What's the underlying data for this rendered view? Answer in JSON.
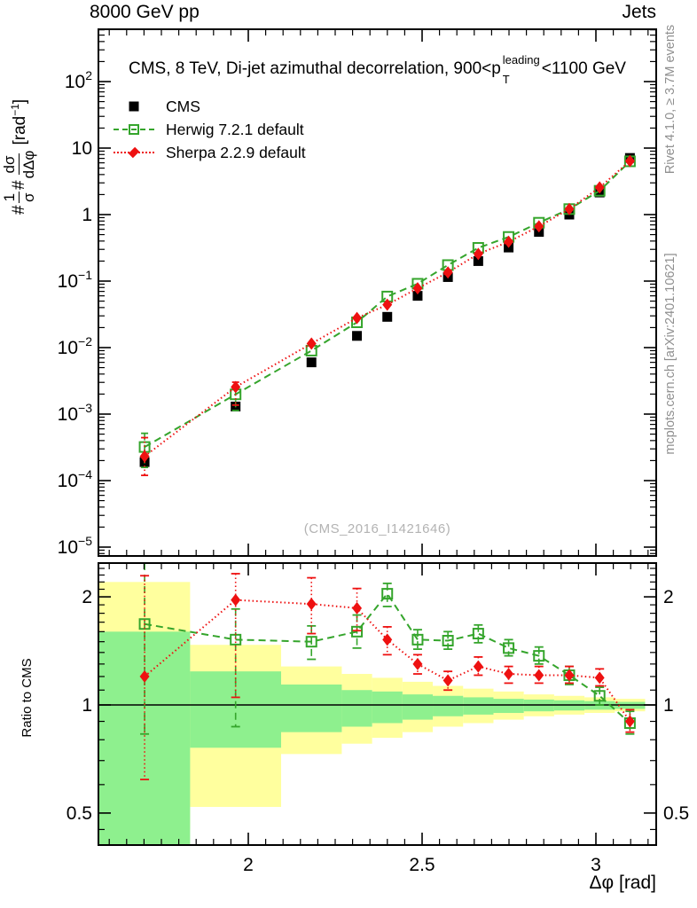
{
  "header": {
    "left": "8000 GeV pp",
    "right": "Jets"
  },
  "title": {
    "pre": "CMS, 8 TeV, Di-jet azimuthal decorrelation, 900<p",
    "sup": "leading",
    "sub": "T",
    "post": "<1100 GeV"
  },
  "legend": {
    "items": [
      {
        "label": "CMS",
        "marker": "filled-square",
        "color": "#000000",
        "line": "none"
      },
      {
        "label": "Herwig 7.2.1 default",
        "marker": "open-square",
        "color": "#35a52c",
        "line": "dashed"
      },
      {
        "label": "Sherpa 2.2.9 default",
        "marker": "filled-diamond",
        "color": "#ee1111",
        "line": "dotted"
      }
    ]
  },
  "watermark": "(CMS_2016_I1421646)",
  "side_notes": {
    "top": "Rivet 4.1.0, ≥ 3.7M events",
    "bottom": "mcplots.cern.ch [arXiv:2401.10621]"
  },
  "labels": {
    "x_axis": "Δφ [rad]",
    "ratio_axis": "Ratio to CMS",
    "y_axis": {
      "hash1": "#",
      "f1_num": "1",
      "f1_den": "σ",
      "hash2": "#",
      "f2_num": "dσ",
      "f2_den": "dΔφ",
      "unit_pre": "[rad",
      "unit_sup": "−1",
      "unit_post": "]"
    }
  },
  "colors": {
    "cms": "#000000",
    "herwig": "#35a52c",
    "sherpa": "#ee1111",
    "band_yellow": "#ffff9e",
    "band_green": "#8ef08e",
    "text_gray": "#8f8f8f",
    "watermark_gray": "#b3b3b3"
  },
  "chart_data": {
    "type": "line",
    "title": "CMS, 8 TeV, Di-jet azimuthal decorrelation, 900<pT(leading)<1100 GeV",
    "xlabel": "Δφ [rad]",
    "ylabel": "#1/σ #dσ/dΔφ [rad−1]",
    "x_range": [
      1.569,
      3.173
    ],
    "x_ticks": [
      {
        "v": 2,
        "label": "2"
      },
      {
        "v": 2.5,
        "label": "2.5"
      },
      {
        "v": 3,
        "label": "3"
      }
    ],
    "x_minor_step": 0.05,
    "bin_edges": [
      1.5708,
      1.8326,
      2.0944,
      2.2689,
      2.3562,
      2.4435,
      2.5307,
      2.618,
      2.7053,
      2.7925,
      2.8798,
      2.9671,
      3.0543,
      3.1416
    ],
    "x": [
      1.7017,
      1.9635,
      2.1817,
      2.3126,
      2.3998,
      2.4871,
      2.5743,
      2.6616,
      2.7489,
      2.8361,
      2.9234,
      3.0107,
      3.0979
    ],
    "main_panel": {
      "ylog": true,
      "y_exp_range": [
        -5.133,
        2.787
      ],
      "y_ticks": [
        {
          "v": 100,
          "base": "10",
          "sup": "2"
        },
        {
          "v": 10,
          "base": "10",
          "sup": ""
        },
        {
          "v": 1,
          "base": "1",
          "sup": ""
        },
        {
          "v": 0.1,
          "base": "10",
          "sup": "−1"
        },
        {
          "v": 0.01,
          "base": "10",
          "sup": "−2"
        },
        {
          "v": 0.001,
          "base": "10",
          "sup": "−3"
        },
        {
          "v": 0.0001,
          "base": "10",
          "sup": "−4"
        },
        {
          "v": 1e-05,
          "base": "10",
          "sup": "−5"
        }
      ],
      "series": [
        {
          "name": "CMS",
          "values": [
            0.00019,
            0.0013,
            0.006,
            0.015,
            0.029,
            0.06,
            0.115,
            0.2,
            0.32,
            0.55,
            1.0,
            2.15,
            7.1
          ]
        },
        {
          "name": "Herwig 7.2.1 default",
          "values": [
            0.00032,
            0.00198,
            0.009,
            0.024,
            0.0586,
            0.0912,
            0.174,
            0.316,
            0.461,
            0.754,
            1.21,
            2.28,
            6.32
          ]
        },
        {
          "name": "Sherpa 2.2.9 default",
          "values": [
            0.000232,
            0.00255,
            0.0115,
            0.0279,
            0.0441,
            0.078,
            0.135,
            0.256,
            0.39,
            0.666,
            1.21,
            2.56,
            6.39
          ]
        }
      ]
    },
    "ratio_panel": {
      "ylabel": "Ratio to CMS",
      "ylog": true,
      "y_range": [
        0.408,
        2.484
      ],
      "y_ticks": [
        {
          "v": 2,
          "label": "2"
        },
        {
          "v": 1,
          "label": "1"
        },
        {
          "v": 0.5,
          "label": "0.5"
        }
      ],
      "reference": {
        "name": "CMS",
        "value": 1
      },
      "bands": {
        "yellow_lo": [
          0.45,
          0.52,
          0.73,
          0.78,
          0.81,
          0.84,
          0.87,
          0.89,
          0.91,
          0.93,
          0.94,
          0.95,
          0.96
        ],
        "yellow_hi": [
          2.2,
          1.47,
          1.28,
          1.22,
          1.19,
          1.16,
          1.13,
          1.11,
          1.09,
          1.07,
          1.06,
          1.05,
          1.04
        ],
        "green_lo": [
          0.37,
          0.76,
          0.84,
          0.87,
          0.89,
          0.91,
          0.93,
          0.94,
          0.95,
          0.96,
          0.965,
          0.97,
          0.975
        ],
        "green_hi": [
          1.6,
          1.24,
          1.14,
          1.1,
          1.09,
          1.07,
          1.06,
          1.05,
          1.04,
          1.035,
          1.03,
          1.025,
          1.02
        ]
      },
      "series": [
        {
          "name": "Herwig 7.2.1 default",
          "ratio": [
            1.68,
            1.52,
            1.5,
            1.6,
            2.04,
            1.52,
            1.51,
            1.58,
            1.44,
            1.37,
            1.21,
            1.06,
            0.89
          ],
          "err_lo": [
            0.83,
            0.87,
            1.34,
            1.44,
            1.88,
            1.43,
            1.43,
            1.49,
            1.37,
            1.3,
            1.14,
            1.0,
            0.83
          ],
          "err_hi": [
            2.7,
            1.85,
            1.66,
            1.78,
            2.18,
            1.62,
            1.6,
            1.67,
            1.52,
            1.45,
            1.28,
            1.12,
            0.96
          ]
        },
        {
          "name": "Sherpa 2.2.9 default",
          "ratio": [
            1.2,
            1.96,
            1.91,
            1.86,
            1.52,
            1.3,
            1.17,
            1.28,
            1.22,
            1.21,
            1.21,
            1.19,
            0.9
          ],
          "err_lo": [
            0.62,
            1.05,
            1.58,
            1.61,
            1.38,
            1.22,
            1.1,
            1.21,
            1.15,
            1.15,
            1.15,
            1.13,
            0.84
          ],
          "err_hi": [
            2.29,
            2.32,
            2.26,
            2.11,
            1.65,
            1.38,
            1.24,
            1.36,
            1.28,
            1.28,
            1.28,
            1.26,
            0.97
          ]
        }
      ]
    },
    "legend_position": "top-left",
    "grid": false
  }
}
